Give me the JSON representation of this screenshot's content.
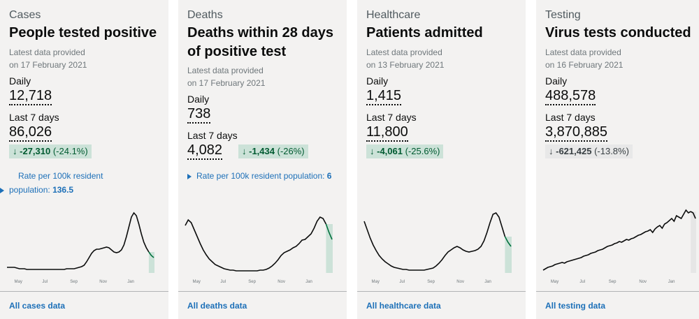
{
  "cards": [
    {
      "category": "Cases",
      "title_lines": [
        "People tested positive"
      ],
      "provided": [
        "Latest data provided",
        "on 17 February 2021"
      ],
      "daily_label": "Daily",
      "daily_value": "12,718",
      "week_label": "Last 7 days",
      "week_value": "86,026",
      "change_arrow": "↓",
      "change_value": "-27,310",
      "change_pct": "(-24.1%)",
      "change_color": "#005a30",
      "rate_text_1": "Rate per 100k resident",
      "rate_text_2": "population: ",
      "rate_value": "136.5",
      "link": "All cases data",
      "ticks": [
        "May",
        "Jul",
        "Sep",
        "Nov",
        "Jan"
      ],
      "series": [
        8,
        8,
        8,
        8,
        7,
        6,
        6,
        6,
        5,
        5,
        5,
        5,
        5,
        5,
        5,
        5,
        5,
        5,
        5,
        5,
        5,
        5,
        5,
        5,
        6,
        6,
        6,
        6,
        7,
        8,
        9,
        11,
        16,
        22,
        28,
        32,
        34,
        34,
        35,
        36,
        37,
        36,
        33,
        30,
        29,
        30,
        33,
        40,
        52,
        66,
        80,
        86,
        82,
        70,
        56,
        44,
        36,
        30,
        25,
        22
      ]
    },
    {
      "category": "Deaths",
      "title_lines": [
        "Deaths within 28 days",
        "of positive test"
      ],
      "provided": [
        "Latest data provided",
        "on 17 February 2021"
      ],
      "daily_label": "Daily",
      "daily_value": "738",
      "week_label": "Last 7 days",
      "week_value": "4,082",
      "change_arrow": "↓",
      "change_value": "-1,434",
      "change_pct": "(-26%)",
      "change_color": "#005a30",
      "rate_text_1": "Rate per 100k resident population: ",
      "rate_text_2": "",
      "rate_value": "6",
      "link": "All deaths data",
      "ticks": [
        "May",
        "Jul",
        "Sep",
        "Nov",
        "Jan"
      ],
      "series": [
        68,
        76,
        72,
        62,
        52,
        42,
        33,
        26,
        20,
        16,
        12,
        10,
        8,
        6,
        5,
        4,
        4,
        3,
        3,
        3,
        3,
        3,
        3,
        3,
        3,
        4,
        4,
        5,
        7,
        10,
        14,
        19,
        25,
        29,
        31,
        33,
        36,
        38,
        42,
        47,
        48,
        52,
        56,
        64,
        74,
        80,
        78,
        70,
        58,
        48
      ]
    },
    {
      "category": "Healthcare",
      "title_lines": [
        "Patients admitted"
      ],
      "provided": [
        "Latest data provided",
        "on 13 February 2021"
      ],
      "daily_label": "Daily",
      "daily_value": "1,415",
      "week_label": "Last 7 days",
      "week_value": "11,800",
      "change_arrow": "↓",
      "change_value": "-4,061",
      "change_pct": "(-25.6%)",
      "change_color": "#005a30",
      "rate_text_1": "",
      "rate_text_2": "",
      "rate_value": "",
      "link": "All healthcare data",
      "ticks": [
        "May",
        "Jul",
        "Sep",
        "Nov",
        "Jan"
      ],
      "series": [
        74,
        62,
        50,
        40,
        32,
        25,
        20,
        16,
        13,
        10,
        8,
        7,
        6,
        5,
        5,
        4,
        4,
        4,
        4,
        4,
        4,
        5,
        6,
        7,
        10,
        14,
        19,
        25,
        30,
        33,
        36,
        38,
        36,
        33,
        31,
        30,
        31,
        32,
        34,
        38,
        46,
        58,
        72,
        84,
        86,
        80,
        66,
        52,
        44,
        38
      ]
    },
    {
      "category": "Testing",
      "title_lines": [
        "Virus tests conducted"
      ],
      "provided": [
        "Latest data provided",
        "on 16 February 2021"
      ],
      "daily_label": "Daily",
      "daily_value": "488,578",
      "week_label": "Last 7 days",
      "week_value": "3,870,885",
      "change_arrow": "↓",
      "change_value": "-621,425",
      "change_pct": "(-13.8%)",
      "change_color": "#383f43",
      "rate_text_1": "",
      "rate_text_2": "",
      "rate_value": "",
      "link": "All testing data",
      "ticks": [
        "May",
        "Jul",
        "Sep",
        "Nov",
        "Jan"
      ],
      "series": [
        4,
        6,
        8,
        9,
        10,
        12,
        13,
        14,
        15,
        14,
        16,
        17,
        18,
        19,
        20,
        21,
        22,
        24,
        25,
        26,
        28,
        29,
        30,
        32,
        33,
        34,
        36,
        38,
        39,
        40,
        42,
        43,
        45,
        44,
        46,
        48,
        47,
        49,
        50,
        52,
        54,
        55,
        57,
        59,
        60,
        62,
        58,
        63,
        66,
        68,
        64,
        70,
        72,
        75,
        78,
        74,
        82,
        80,
        78,
        84,
        90,
        86,
        88,
        86,
        78
      ]
    }
  ]
}
